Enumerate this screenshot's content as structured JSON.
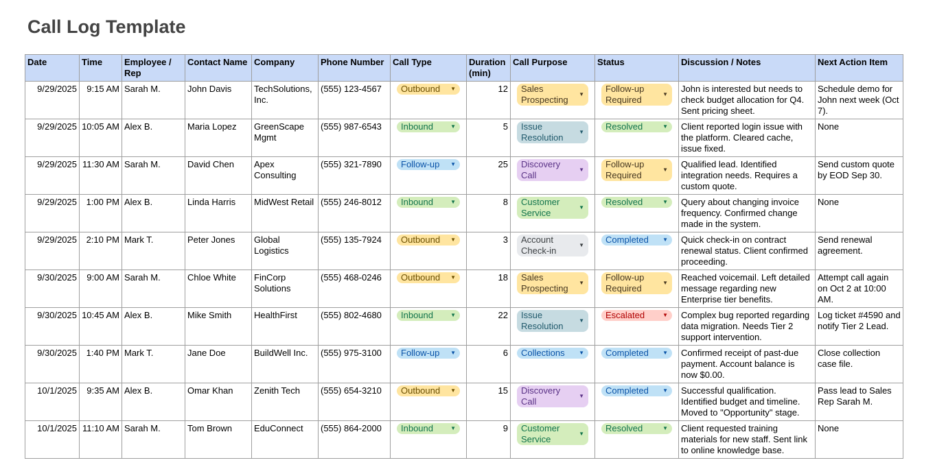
{
  "title": "Call Log Template",
  "headers": [
    "Date",
    "Time",
    "Employee / Rep",
    "Contact Name",
    "Company",
    "Phone Number",
    "Call Type",
    "Duration (min)",
    "Call Purpose",
    "Status",
    "Discussion / Notes",
    "Next Action Item"
  ],
  "chip_colors": {
    "Outbound": {
      "bg": "#ffe5a0",
      "fg": "#6b4f00"
    },
    "Inbound": {
      "bg": "#d4edbc",
      "fg": "#11734b"
    },
    "Follow-up": {
      "bg": "#bfe1f6",
      "fg": "#0a53a8"
    },
    "Sales Prospecting": {
      "bg": "#ffe5a0",
      "fg": "#473821"
    },
    "Issue Resolution": {
      "bg": "#c6dbe1",
      "fg": "#215a6c"
    },
    "Discovery Call": {
      "bg": "#e6cff2",
      "fg": "#5a3286"
    },
    "Customer Service": {
      "bg": "#d4edbc",
      "fg": "#11734b"
    },
    "Account Check-in": {
      "bg": "#e8eaed",
      "fg": "#3c4043"
    },
    "Collections": {
      "bg": "#bfe1f6",
      "fg": "#0a53a8"
    },
    "Follow-up Required": {
      "bg": "#ffe5a0",
      "fg": "#473821"
    },
    "Resolved": {
      "bg": "#d4edbc",
      "fg": "#11734b"
    },
    "Completed": {
      "bg": "#bfe1f6",
      "fg": "#0a53a8"
    },
    "Escalated": {
      "bg": "#ffcfc9",
      "fg": "#b10202"
    }
  },
  "rows": [
    {
      "date": "9/29/2025",
      "time": "9:15 AM",
      "rep": "Sarah M.",
      "contact": "John Davis",
      "company": "TechSolutions, Inc.",
      "phone": "(555) 123-4567",
      "type": "Outbound",
      "duration": "12",
      "purpose": "Sales Prospecting",
      "status": "Follow-up Required",
      "notes": "John is interested but needs to check budget allocation for Q4. Sent pricing sheet.",
      "next": "Schedule demo for John next week (Oct 7)."
    },
    {
      "date": "9/29/2025",
      "time": "10:05 AM",
      "rep": "Alex B.",
      "contact": "Maria Lopez",
      "company": "GreenScape Mgmt",
      "phone": "(555) 987-6543",
      "type": "Inbound",
      "duration": "5",
      "purpose": "Issue Resolution",
      "status": "Resolved",
      "notes": "Client reported login issue with the platform. Cleared cache, issue fixed.",
      "next": "None"
    },
    {
      "date": "9/29/2025",
      "time": "11:30 AM",
      "rep": "Sarah M.",
      "contact": "David Chen",
      "company": "Apex Consulting",
      "phone": "(555) 321-7890",
      "type": "Follow-up",
      "duration": "25",
      "purpose": "Discovery Call",
      "status": "Follow-up Required",
      "notes": "Qualified lead. Identified integration needs. Requires a custom quote.",
      "next": "Send custom quote by EOD Sep 30."
    },
    {
      "date": "9/29/2025",
      "time": "1:00 PM",
      "rep": "Alex B.",
      "contact": "Linda Harris",
      "company": "MidWest Retail",
      "phone": "(555) 246-8012",
      "type": "Inbound",
      "duration": "8",
      "purpose": "Customer Service",
      "status": "Resolved",
      "notes": "Query about changing invoice frequency. Confirmed change made in the system.",
      "next": "None"
    },
    {
      "date": "9/29/2025",
      "time": "2:10 PM",
      "rep": "Mark T.",
      "contact": "Peter Jones",
      "company": "Global Logistics",
      "phone": "(555) 135-7924",
      "type": "Outbound",
      "duration": "3",
      "purpose": "Account Check-in",
      "status": "Completed",
      "notes": "Quick check-in on contract renewal status. Client confirmed proceeding.",
      "next": "Send renewal agreement."
    },
    {
      "date": "9/30/2025",
      "time": "9:00 AM",
      "rep": "Sarah M.",
      "contact": "Chloe White",
      "company": "FinCorp Solutions",
      "phone": "(555) 468-0246",
      "type": "Outbound",
      "duration": "18",
      "purpose": "Sales Prospecting",
      "status": "Follow-up Required",
      "notes": "Reached voicemail. Left detailed message regarding new Enterprise tier benefits.",
      "next": "Attempt call again on Oct 2 at 10:00 AM."
    },
    {
      "date": "9/30/2025",
      "time": "10:45 AM",
      "rep": "Alex B.",
      "contact": "Mike Smith",
      "company": "HealthFirst",
      "phone": "(555) 802-4680",
      "type": "Inbound",
      "duration": "22",
      "purpose": "Issue Resolution",
      "status": "Escalated",
      "notes": "Complex bug reported regarding data migration. Needs Tier 2 support intervention.",
      "next": "Log ticket #4590 and notify Tier 2 Lead."
    },
    {
      "date": "9/30/2025",
      "time": "1:40 PM",
      "rep": "Mark T.",
      "contact": "Jane Doe",
      "company": "BuildWell Inc.",
      "phone": "(555) 975-3100",
      "type": "Follow-up",
      "duration": "6",
      "purpose": "Collections",
      "status": "Completed",
      "notes": "Confirmed receipt of past-due payment. Account balance is now $0.00.",
      "next": "Close collection case file."
    },
    {
      "date": "10/1/2025",
      "time": "9:35 AM",
      "rep": "Alex B.",
      "contact": "Omar Khan",
      "company": "Zenith Tech",
      "phone": "(555) 654-3210",
      "type": "Outbound",
      "duration": "15",
      "purpose": "Discovery Call",
      "status": "Completed",
      "notes": "Successful qualification. Identified budget and timeline. Moved to \"Opportunity\" stage.",
      "next": "Pass lead to Sales Rep Sarah M."
    },
    {
      "date": "10/1/2025",
      "time": "11:10 AM",
      "rep": "Sarah M.",
      "contact": "Tom Brown",
      "company": "EduConnect",
      "phone": "(555) 864-2000",
      "type": "Inbound",
      "duration": "9",
      "purpose": "Customer Service",
      "status": "Resolved",
      "notes": "Client requested training materials for new staff. Sent link to online knowledge base.",
      "next": "None"
    }
  ]
}
